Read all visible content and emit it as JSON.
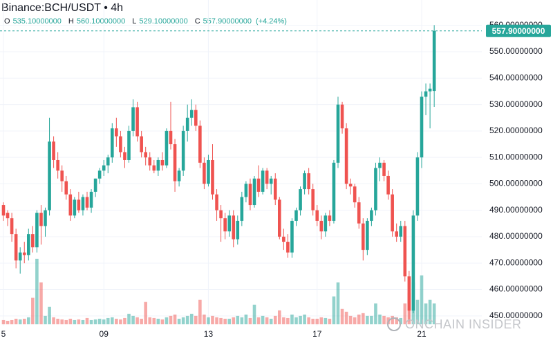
{
  "chart_data": {
    "type": "candlestick",
    "title": "Binance:BCH/USDT • 4h",
    "ohlc_header": [
      {
        "key": "O",
        "value": "535.10000000"
      },
      {
        "key": "H",
        "value": "560.10000000"
      },
      {
        "key": "L",
        "value": "529.10000000"
      },
      {
        "key": "C",
        "value": "557.90000000"
      }
    ],
    "change_label": "(+4.24%)",
    "price_label": "557.90000000",
    "watermark": "ONCHAIN INSIDER",
    "up_color": "#26a69a",
    "down_color": "#ef5350",
    "ylim": [
      446.3,
      569.6
    ],
    "yticks": [
      {
        "value": 450,
        "label": "450.00000000"
      },
      {
        "value": 460,
        "label": "460.00000000"
      },
      {
        "value": 470,
        "label": "470.00000000"
      },
      {
        "value": 480,
        "label": "480.00000000"
      },
      {
        "value": 490,
        "label": "490.00000000"
      },
      {
        "value": 500,
        "label": "500.00000000"
      },
      {
        "value": 510,
        "label": "510.00000000"
      },
      {
        "value": 520,
        "label": "520.00000000"
      },
      {
        "value": 530,
        "label": "530.00000000"
      },
      {
        "value": 540,
        "label": "540.00000000"
      },
      {
        "value": 550,
        "label": "550.00000000"
      },
      {
        "value": 560,
        "label": "560.00000000"
      }
    ],
    "grid": true,
    "categories": [
      "5",
      null,
      null,
      null,
      null,
      null,
      null,
      null,
      null,
      null,
      null,
      null,
      null,
      null,
      null,
      null,
      null,
      null,
      null,
      null,
      null,
      null,
      null,
      null,
      "09",
      null,
      null,
      null,
      null,
      null,
      null,
      null,
      null,
      null,
      null,
      null,
      null,
      null,
      null,
      null,
      null,
      null,
      null,
      null,
      null,
      null,
      null,
      null,
      null,
      "13",
      null,
      null,
      null,
      null,
      null,
      null,
      null,
      null,
      null,
      null,
      null,
      null,
      null,
      null,
      null,
      null,
      null,
      null,
      null,
      null,
      null,
      null,
      null,
      null,
      null,
      "17",
      null,
      null,
      null,
      null,
      null,
      null,
      null,
      null,
      null,
      null,
      null,
      null,
      null,
      null,
      null,
      null,
      null,
      null,
      null,
      null,
      null,
      null,
      null,
      null,
      "21",
      null,
      null,
      null
    ],
    "ohlc": [
      [
        492,
        493,
        486,
        488
      ],
      [
        489,
        490,
        484,
        487
      ],
      [
        487,
        489,
        478,
        481
      ],
      [
        481,
        483,
        468,
        471
      ],
      [
        471,
        476,
        466,
        474
      ],
      [
        474,
        478,
        470,
        473
      ],
      [
        473,
        483,
        471,
        481
      ],
      [
        481,
        484,
        474,
        476
      ],
      [
        476,
        490,
        474,
        489
      ],
      [
        489,
        492,
        477,
        484
      ],
      [
        484,
        491,
        480,
        490
      ],
      [
        490,
        525,
        488,
        516
      ],
      [
        516,
        518,
        506,
        509
      ],
      [
        509,
        512,
        502,
        505
      ],
      [
        505,
        507,
        497,
        501
      ],
      [
        501,
        503,
        494,
        496
      ],
      [
        496,
        498,
        486,
        488
      ],
      [
        488,
        495,
        487,
        494
      ],
      [
        494,
        497,
        489,
        490
      ],
      [
        490,
        496,
        488,
        495
      ],
      [
        495,
        497,
        490,
        491
      ],
      [
        491,
        498,
        489,
        497
      ],
      [
        497,
        502,
        495,
        502
      ],
      [
        502,
        506,
        500,
        505
      ],
      [
        505,
        509,
        503,
        507
      ],
      [
        507,
        511,
        504,
        510
      ],
      [
        510,
        523,
        508,
        521
      ],
      [
        521,
        525,
        514,
        518
      ],
      [
        518,
        520,
        510,
        512
      ],
      [
        512,
        514,
        506,
        509
      ],
      [
        509,
        522,
        508,
        520
      ],
      [
        520,
        532,
        518,
        529
      ],
      [
        529,
        531,
        516,
        518
      ],
      [
        518,
        520,
        510,
        512
      ],
      [
        512,
        514,
        507,
        510
      ],
      [
        510,
        512,
        505,
        507
      ],
      [
        507,
        509,
        504,
        505
      ],
      [
        505,
        510,
        503,
        509
      ],
      [
        509,
        512,
        505,
        507
      ],
      [
        507,
        521,
        506,
        520
      ],
      [
        520,
        531,
        513,
        515
      ],
      [
        515,
        517,
        497,
        501
      ],
      [
        501,
        506,
        499,
        505
      ],
      [
        505,
        522,
        503,
        520
      ],
      [
        520,
        530,
        516,
        525
      ],
      [
        525,
        532,
        522,
        528
      ],
      [
        528,
        530,
        520,
        522
      ],
      [
        522,
        524,
        506,
        508
      ],
      [
        508,
        510,
        498,
        500
      ],
      [
        500,
        511,
        499,
        509
      ],
      [
        509,
        515,
        494,
        496
      ],
      [
        496,
        498,
        486,
        490
      ],
      [
        490,
        492,
        478,
        487
      ],
      [
        487,
        489,
        479,
        482
      ],
      [
        482,
        490,
        480,
        488
      ],
      [
        488,
        490,
        476,
        479
      ],
      [
        479,
        488,
        477,
        486
      ],
      [
        486,
        497,
        484,
        495
      ],
      [
        495,
        501,
        493,
        500
      ],
      [
        500,
        502,
        490,
        492
      ],
      [
        492,
        503,
        491,
        502
      ],
      [
        502,
        507,
        495,
        497
      ],
      [
        497,
        506,
        496,
        505
      ],
      [
        505,
        506,
        498,
        500
      ],
      [
        500,
        503,
        496,
        502
      ],
      [
        502,
        504,
        492,
        494
      ],
      [
        494,
        495,
        479,
        480
      ],
      [
        480,
        483,
        475,
        478
      ],
      [
        478,
        481,
        472,
        474
      ],
      [
        474,
        487,
        472,
        486
      ],
      [
        486,
        491,
        484,
        490
      ],
      [
        490,
        499,
        488,
        498
      ],
      [
        498,
        505,
        496,
        504
      ],
      [
        504,
        506,
        496,
        498
      ],
      [
        498,
        500,
        488,
        490
      ],
      [
        490,
        492,
        484,
        486
      ],
      [
        486,
        488,
        479,
        482
      ],
      [
        482,
        489,
        480,
        488
      ],
      [
        488,
        490,
        484,
        486
      ],
      [
        486,
        509,
        485,
        508
      ],
      [
        508,
        533,
        506,
        530
      ],
      [
        530,
        531,
        519,
        521
      ],
      [
        521,
        523,
        498,
        500
      ],
      [
        500,
        502,
        496,
        499
      ],
      [
        499,
        500,
        491,
        493
      ],
      [
        493,
        495,
        483,
        485
      ],
      [
        485,
        487,
        471,
        475
      ],
      [
        475,
        487,
        473,
        486
      ],
      [
        486,
        491,
        484,
        490
      ],
      [
        490,
        508,
        488,
        506
      ],
      [
        506,
        510,
        501,
        508
      ],
      [
        508,
        509,
        501,
        503
      ],
      [
        503,
        505,
        494,
        496
      ],
      [
        496,
        498,
        480,
        482
      ],
      [
        482,
        485,
        478,
        480
      ],
      [
        480,
        486,
        478,
        484
      ],
      [
        484,
        486,
        463,
        465
      ],
      [
        465,
        467,
        448,
        452
      ],
      [
        452,
        490,
        451,
        488
      ],
      [
        488,
        512,
        486,
        510
      ],
      [
        510,
        535,
        506,
        533
      ],
      [
        533,
        538,
        526,
        535
      ],
      [
        535,
        538,
        521,
        536
      ],
      [
        535.1,
        560.1,
        529.1,
        557.9
      ]
    ],
    "volume": [
      6,
      5,
      6,
      8,
      7,
      8,
      10,
      38,
      94,
      60,
      12,
      25,
      10,
      8,
      7,
      6,
      8,
      6,
      7,
      6,
      9,
      6,
      7,
      8,
      7,
      9,
      10,
      8,
      7,
      9,
      15,
      12,
      10,
      8,
      32,
      10,
      9,
      8,
      7,
      10,
      12,
      14,
      8,
      10,
      12,
      15,
      12,
      35,
      14,
      10,
      12,
      10,
      9,
      8,
      8,
      10,
      12,
      10,
      14,
      9,
      28,
      10,
      12,
      10,
      8,
      12,
      20,
      10,
      9,
      14,
      10,
      12,
      14,
      10,
      8,
      8,
      10,
      9,
      8,
      40,
      60,
      22,
      18,
      12,
      10,
      14,
      16,
      12,
      12,
      30,
      14,
      12,
      10,
      12,
      10,
      9,
      30,
      45,
      60,
      35,
      70,
      30,
      35,
      30
    ]
  }
}
